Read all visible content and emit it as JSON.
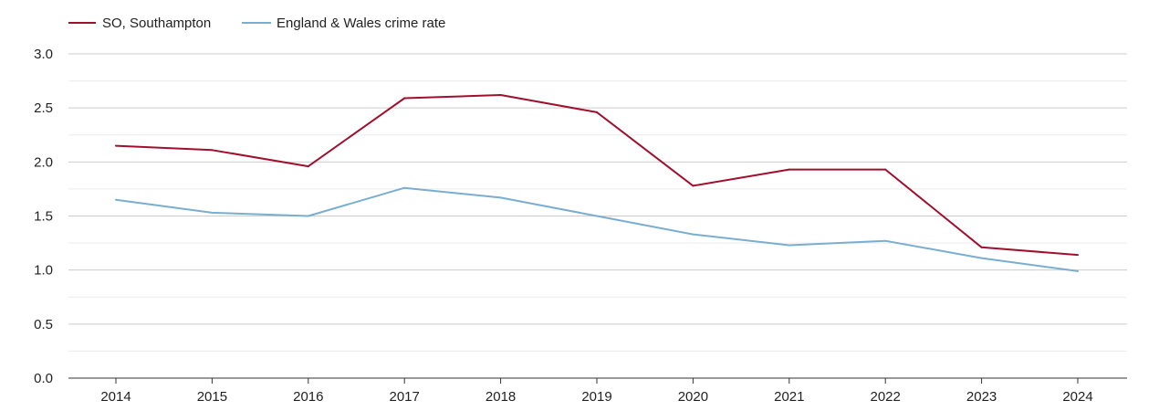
{
  "chart_data": {
    "type": "line",
    "title": "",
    "xlabel": "",
    "ylabel": "",
    "categories": [
      "2014",
      "2015",
      "2016",
      "2017",
      "2018",
      "2019",
      "2020",
      "2021",
      "2022",
      "2023",
      "2024"
    ],
    "ylim": [
      0,
      3.0
    ],
    "yticks": [
      "0.0",
      "0.5",
      "1.0",
      "1.5",
      "2.0",
      "2.5",
      "3.0"
    ],
    "grid": true,
    "legend_position": "top-left",
    "series": [
      {
        "name": "SO, Southampton",
        "color": "#a0102e",
        "values": [
          2.15,
          2.11,
          1.96,
          2.59,
          2.62,
          2.46,
          1.78,
          1.93,
          1.93,
          1.21,
          1.14
        ]
      },
      {
        "name": "England & Wales crime rate",
        "color": "#7aaed1",
        "values": [
          1.65,
          1.53,
          1.5,
          1.76,
          1.67,
          1.5,
          1.33,
          1.23,
          1.27,
          1.11,
          0.99
        ]
      }
    ]
  }
}
